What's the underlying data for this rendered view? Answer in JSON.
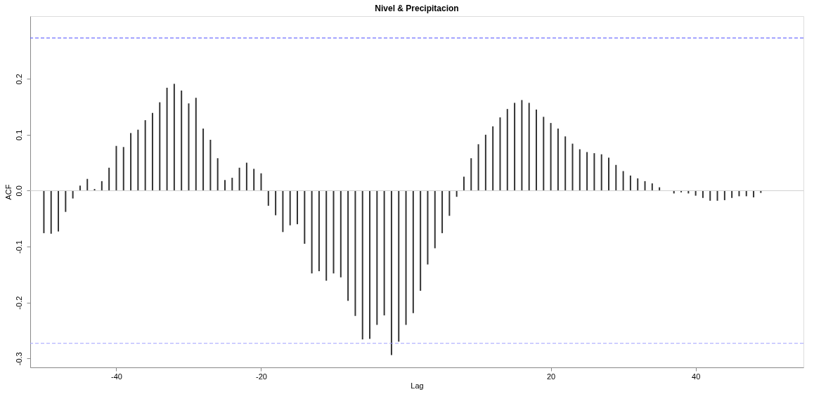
{
  "chart_data": {
    "type": "bar",
    "title": "Nivel & Precipitacion",
    "xlabel": "Lag",
    "ylabel": "ACF",
    "x": [
      -50,
      -49,
      -48,
      -47,
      -46,
      -45,
      -44,
      -43,
      -42,
      -41,
      -40,
      -39,
      -38,
      -37,
      -36,
      -35,
      -34,
      -33,
      -32,
      -31,
      -30,
      -29,
      -28,
      -27,
      -26,
      -25,
      -24,
      -23,
      -22,
      -21,
      -20,
      -19,
      -18,
      -17,
      -16,
      -15,
      -14,
      -13,
      -12,
      -11,
      -10,
      -9,
      -8,
      -7,
      -6,
      -5,
      -4,
      -3,
      -2,
      -1,
      0,
      1,
      2,
      3,
      4,
      5,
      6,
      7,
      8,
      9,
      10,
      11,
      12,
      13,
      14,
      15,
      16,
      17,
      18,
      19,
      20,
      21,
      22,
      23,
      24,
      25,
      26,
      27,
      28,
      29,
      30,
      31,
      32,
      33,
      34,
      35,
      36,
      37,
      38,
      39,
      40,
      41,
      42,
      43,
      44,
      45,
      46,
      47,
      48,
      49
    ],
    "series": [
      {
        "color": "#333333",
        "values": [
          -0.076,
          -0.077,
          -0.073,
          -0.038,
          -0.014,
          0.009,
          0.021,
          0.003,
          0.017,
          0.041,
          0.08,
          0.078,
          0.103,
          0.109,
          0.126,
          0.139,
          0.158,
          0.184,
          0.191,
          0.179,
          0.156,
          0.166,
          0.111,
          0.091,
          0.058,
          0.019,
          0.023,
          0.041,
          0.05,
          0.039,
          0.031,
          -0.027,
          -0.044,
          -0.074,
          -0.062,
          -0.06,
          -0.095,
          -0.148,
          -0.144,
          -0.161,
          -0.148,
          -0.155,
          -0.197,
          -0.224,
          -0.266,
          -0.265,
          -0.24,
          -0.223,
          -0.294,
          -0.27,
          -0.24,
          -0.219,
          -0.179,
          -0.132,
          -0.103,
          -0.076,
          -0.045,
          -0.011,
          0.025,
          0.058,
          0.083,
          0.1,
          0.115,
          0.131,
          0.146,
          0.157,
          0.162,
          0.157,
          0.145,
          0.132,
          0.121,
          0.111,
          0.097,
          0.084,
          0.074,
          0.069,
          0.067,
          0.065,
          0.059,
          0.046,
          0.035,
          0.027,
          0.022,
          0.017,
          0.013,
          0.006,
          null,
          -0.005,
          -0.003,
          -0.005,
          -0.009,
          -0.013,
          -0.018,
          -0.018,
          -0.017,
          -0.013,
          -0.01,
          -0.01,
          -0.012,
          -0.004
        ]
      }
    ],
    "xlim": [
      -51.4,
      54.4
    ],
    "ylim": [
      -0.316,
      0.312
    ],
    "xticks": [
      -40,
      -20,
      20,
      40
    ],
    "yticks": [
      -0.3,
      -0.2,
      -0.1,
      {
        "value": 0,
        "label": "0.0"
      },
      0.1,
      0.2
    ],
    "ref_lines": [
      {
        "axis": "y",
        "value": 0.273,
        "color": "#4b4bff",
        "line_style": "dashed"
      },
      {
        "axis": "y",
        "value": -0.273,
        "color": "#9f9fff",
        "line_style": "dashed"
      },
      {
        "axis": "y",
        "value": 0,
        "color": "#d0d0d0",
        "line_style": "solid"
      }
    ],
    "grid": false
  }
}
